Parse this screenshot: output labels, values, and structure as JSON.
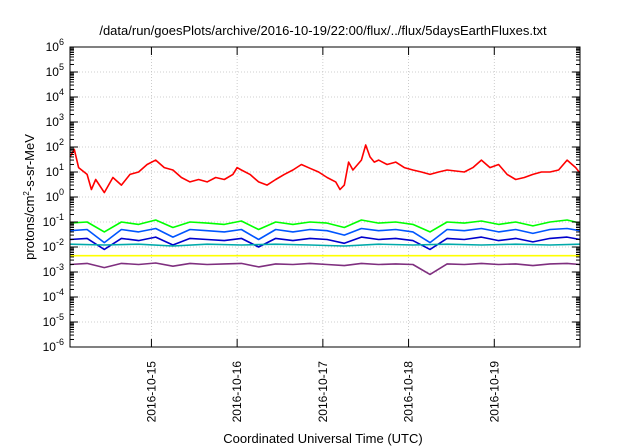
{
  "chart_data": {
    "type": "line",
    "title": "/data/run/goesPlots/archive/2016-10-19/22:00/flux/../flux/5daysEarthFluxes.txt",
    "xlabel": "Coordinated Universal Time (UTC)",
    "ylabel": {
      "prefix": "protons/cm",
      "sup": "2",
      "suffix": "-s-sr-MeV"
    },
    "y_scale": "log",
    "ylim_exp": [
      -6,
      6
    ],
    "y_tick_base": "10",
    "y_tick_exponents": [
      "-6",
      "-5",
      "-4",
      "-3",
      "-2",
      "-1",
      "0",
      "1",
      "2",
      "3",
      "4",
      "5",
      "6"
    ],
    "x_range_days": [
      0,
      5.95
    ],
    "x_ticks": [
      {
        "label": "2016-10-15",
        "day": 0.95
      },
      {
        "label": "2016-10-16",
        "day": 1.95
      },
      {
        "label": "2016-10-17",
        "day": 2.95
      },
      {
        "label": "2016-10-18",
        "day": 3.95
      },
      {
        "label": "2016-10-19",
        "day": 4.95
      }
    ],
    "grid": true,
    "series": [
      {
        "color": "#ff0000",
        "points": [
          [
            0,
            40
          ],
          [
            0.05,
            80
          ],
          [
            0.1,
            15
          ],
          [
            0.2,
            8
          ],
          [
            0.25,
            2
          ],
          [
            0.3,
            5
          ],
          [
            0.4,
            1.5
          ],
          [
            0.5,
            6
          ],
          [
            0.6,
            3
          ],
          [
            0.7,
            8
          ],
          [
            0.8,
            10
          ],
          [
            0.9,
            20
          ],
          [
            1.0,
            30
          ],
          [
            1.1,
            15
          ],
          [
            1.2,
            12
          ],
          [
            1.3,
            6
          ],
          [
            1.4,
            4
          ],
          [
            1.5,
            5
          ],
          [
            1.6,
            4
          ],
          [
            1.7,
            6
          ],
          [
            1.8,
            5
          ],
          [
            1.9,
            8
          ],
          [
            1.95,
            15
          ],
          [
            2.0,
            12
          ],
          [
            2.1,
            8
          ],
          [
            2.2,
            4
          ],
          [
            2.3,
            3
          ],
          [
            2.4,
            5
          ],
          [
            2.5,
            8
          ],
          [
            2.6,
            12
          ],
          [
            2.7,
            20
          ],
          [
            2.8,
            14
          ],
          [
            2.9,
            10
          ],
          [
            3.0,
            6
          ],
          [
            3.1,
            4
          ],
          [
            3.15,
            2
          ],
          [
            3.2,
            3
          ],
          [
            3.25,
            25
          ],
          [
            3.3,
            12
          ],
          [
            3.4,
            30
          ],
          [
            3.45,
            120
          ],
          [
            3.5,
            40
          ],
          [
            3.55,
            25
          ],
          [
            3.6,
            30
          ],
          [
            3.7,
            20
          ],
          [
            3.8,
            25
          ],
          [
            3.9,
            15
          ],
          [
            4.0,
            12
          ],
          [
            4.1,
            10
          ],
          [
            4.2,
            8
          ],
          [
            4.3,
            10
          ],
          [
            4.4,
            12
          ],
          [
            4.5,
            11
          ],
          [
            4.6,
            10
          ],
          [
            4.7,
            15
          ],
          [
            4.8,
            30
          ],
          [
            4.9,
            15
          ],
          [
            5.0,
            20
          ],
          [
            5.1,
            8
          ],
          [
            5.2,
            5
          ],
          [
            5.3,
            6
          ],
          [
            5.4,
            8
          ],
          [
            5.5,
            10
          ],
          [
            5.6,
            10
          ],
          [
            5.7,
            12
          ],
          [
            5.8,
            30
          ],
          [
            5.9,
            15
          ],
          [
            5.95,
            9
          ]
        ]
      },
      {
        "color": "#00ff00",
        "points": [
          [
            0,
            0.09
          ],
          [
            0.2,
            0.1
          ],
          [
            0.4,
            0.04
          ],
          [
            0.6,
            0.1
          ],
          [
            0.8,
            0.08
          ],
          [
            1.0,
            0.12
          ],
          [
            1.2,
            0.06
          ],
          [
            1.4,
            0.1
          ],
          [
            1.6,
            0.09
          ],
          [
            1.8,
            0.08
          ],
          [
            2.0,
            0.11
          ],
          [
            2.2,
            0.05
          ],
          [
            2.4,
            0.1
          ],
          [
            2.6,
            0.08
          ],
          [
            2.8,
            0.1
          ],
          [
            3.0,
            0.09
          ],
          [
            3.2,
            0.06
          ],
          [
            3.4,
            0.12
          ],
          [
            3.6,
            0.09
          ],
          [
            3.8,
            0.1
          ],
          [
            4.0,
            0.08
          ],
          [
            4.2,
            0.04
          ],
          [
            4.4,
            0.1
          ],
          [
            4.6,
            0.09
          ],
          [
            4.8,
            0.11
          ],
          [
            5.0,
            0.08
          ],
          [
            5.2,
            0.1
          ],
          [
            5.4,
            0.07
          ],
          [
            5.6,
            0.1
          ],
          [
            5.8,
            0.12
          ],
          [
            5.95,
            0.09
          ]
        ]
      },
      {
        "color": "#0055ff",
        "points": [
          [
            0,
            0.045
          ],
          [
            0.2,
            0.05
          ],
          [
            0.4,
            0.015
          ],
          [
            0.6,
            0.05
          ],
          [
            0.8,
            0.04
          ],
          [
            1.0,
            0.055
          ],
          [
            1.2,
            0.025
          ],
          [
            1.4,
            0.05
          ],
          [
            1.6,
            0.045
          ],
          [
            1.8,
            0.04
          ],
          [
            2.0,
            0.05
          ],
          [
            2.2,
            0.02
          ],
          [
            2.4,
            0.05
          ],
          [
            2.6,
            0.04
          ],
          [
            2.8,
            0.05
          ],
          [
            3.0,
            0.045
          ],
          [
            3.2,
            0.03
          ],
          [
            3.4,
            0.055
          ],
          [
            3.6,
            0.045
          ],
          [
            3.8,
            0.05
          ],
          [
            4.0,
            0.04
          ],
          [
            4.2,
            0.015
          ],
          [
            4.4,
            0.05
          ],
          [
            4.6,
            0.045
          ],
          [
            4.8,
            0.055
          ],
          [
            5.0,
            0.04
          ],
          [
            5.2,
            0.05
          ],
          [
            5.4,
            0.035
          ],
          [
            5.6,
            0.05
          ],
          [
            5.8,
            0.055
          ],
          [
            5.95,
            0.045
          ]
        ]
      },
      {
        "color": "#0000cc",
        "points": [
          [
            0,
            0.02
          ],
          [
            0.2,
            0.022
          ],
          [
            0.4,
            0.008
          ],
          [
            0.6,
            0.022
          ],
          [
            0.8,
            0.018
          ],
          [
            1.0,
            0.025
          ],
          [
            1.2,
            0.012
          ],
          [
            1.4,
            0.022
          ],
          [
            1.6,
            0.02
          ],
          [
            1.8,
            0.018
          ],
          [
            2.0,
            0.022
          ],
          [
            2.2,
            0.01
          ],
          [
            2.4,
            0.022
          ],
          [
            2.6,
            0.018
          ],
          [
            2.8,
            0.022
          ],
          [
            3.0,
            0.02
          ],
          [
            3.2,
            0.014
          ],
          [
            3.4,
            0.025
          ],
          [
            3.6,
            0.02
          ],
          [
            3.8,
            0.022
          ],
          [
            4.0,
            0.018
          ],
          [
            4.2,
            0.008
          ],
          [
            4.4,
            0.022
          ],
          [
            4.6,
            0.02
          ],
          [
            4.8,
            0.025
          ],
          [
            5.0,
            0.018
          ],
          [
            5.2,
            0.022
          ],
          [
            5.4,
            0.016
          ],
          [
            5.6,
            0.022
          ],
          [
            5.8,
            0.025
          ],
          [
            5.95,
            0.02
          ]
        ]
      },
      {
        "color": "#00aaaa",
        "points": [
          [
            0,
            0.013
          ],
          [
            0.4,
            0.012
          ],
          [
            0.8,
            0.013
          ],
          [
            1.2,
            0.011
          ],
          [
            1.6,
            0.013
          ],
          [
            2.0,
            0.012
          ],
          [
            2.4,
            0.013
          ],
          [
            2.8,
            0.012
          ],
          [
            3.2,
            0.011
          ],
          [
            3.6,
            0.013
          ],
          [
            4.0,
            0.012
          ],
          [
            4.4,
            0.013
          ],
          [
            4.8,
            0.012
          ],
          [
            5.2,
            0.013
          ],
          [
            5.6,
            0.012
          ],
          [
            5.95,
            0.013
          ]
        ]
      },
      {
        "color": "#ffff00",
        "points": [
          [
            0,
            0.0045
          ],
          [
            1.0,
            0.0045
          ],
          [
            2.0,
            0.0045
          ],
          [
            3.0,
            0.0045
          ],
          [
            4.0,
            0.0045
          ],
          [
            5.0,
            0.0045
          ],
          [
            5.95,
            0.0045
          ]
        ]
      },
      {
        "color": "#7f2f7f",
        "points": [
          [
            0,
            0.002
          ],
          [
            0.2,
            0.0022
          ],
          [
            0.4,
            0.0015
          ],
          [
            0.6,
            0.0022
          ],
          [
            0.8,
            0.002
          ],
          [
            1.0,
            0.0023
          ],
          [
            1.2,
            0.0017
          ],
          [
            1.4,
            0.0022
          ],
          [
            1.6,
            0.002
          ],
          [
            1.8,
            0.0021
          ],
          [
            2.0,
            0.0022
          ],
          [
            2.2,
            0.0016
          ],
          [
            2.4,
            0.0021
          ],
          [
            2.6,
            0.002
          ],
          [
            2.8,
            0.0022
          ],
          [
            3.0,
            0.002
          ],
          [
            3.2,
            0.0018
          ],
          [
            3.4,
            0.0022
          ],
          [
            3.6,
            0.002
          ],
          [
            3.8,
            0.0021
          ],
          [
            4.0,
            0.002
          ],
          [
            4.2,
            0.0008
          ],
          [
            4.4,
            0.0021
          ],
          [
            4.6,
            0.002
          ],
          [
            4.8,
            0.0022
          ],
          [
            5.0,
            0.002
          ],
          [
            5.2,
            0.0021
          ],
          [
            5.4,
            0.0018
          ],
          [
            5.6,
            0.0021
          ],
          [
            5.8,
            0.0022
          ],
          [
            5.95,
            0.002
          ]
        ]
      }
    ]
  }
}
